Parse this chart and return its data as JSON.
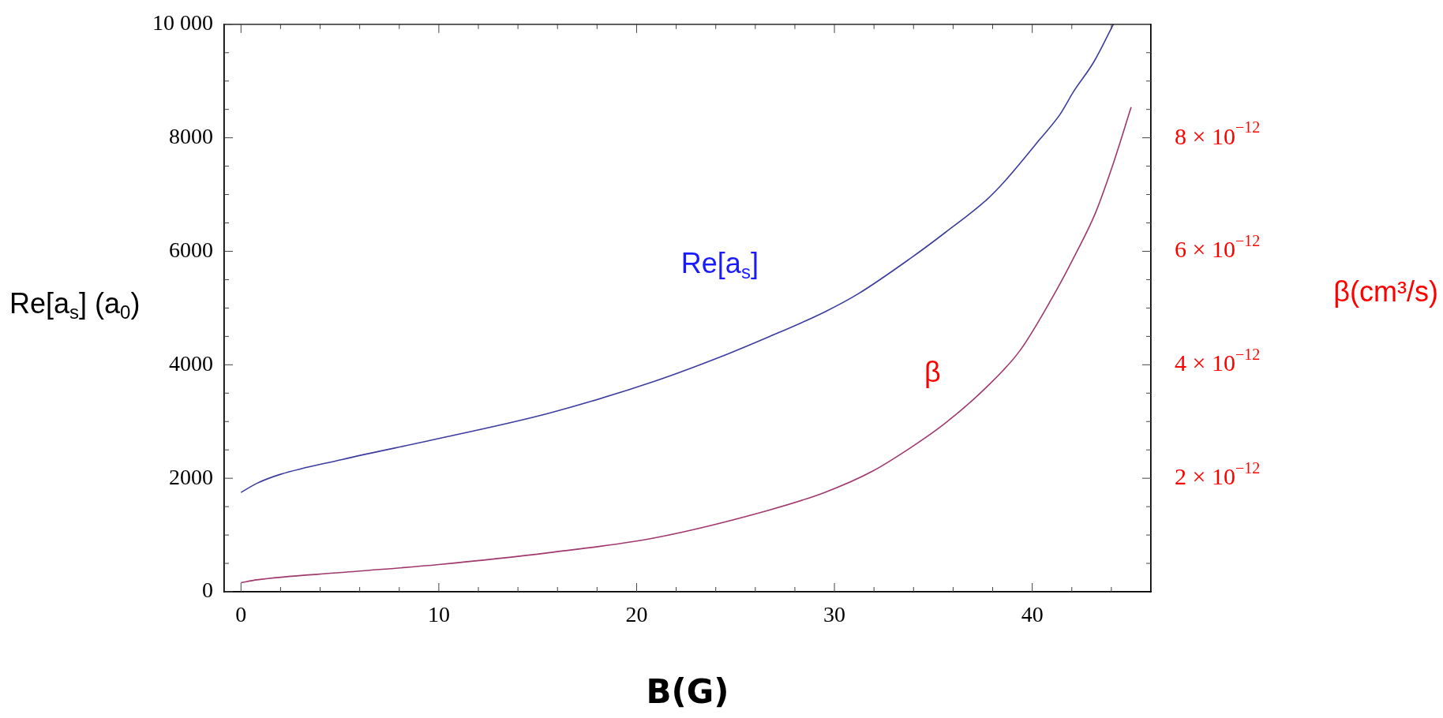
{
  "chart_data": {
    "type": "line",
    "xlabel": "B(G)",
    "ylabel": "Re[a$_{s}$] (a$_{0}$)",
    "y2label": "β(cm³/s)",
    "xlim": [
      -0.85,
      46
    ],
    "ylim": [
      0,
      10000
    ],
    "y2lim": [
      0,
      1e-11
    ],
    "xticks": [
      0,
      {
        "value": 2,
        "label": null
      },
      {
        "value": 4,
        "label": null
      },
      {
        "value": 6,
        "label": null
      },
      {
        "value": 8,
        "label": null
      },
      10,
      {
        "value": 12,
        "label": null
      },
      {
        "value": 14,
        "label": null
      },
      {
        "value": 16,
        "label": null
      },
      {
        "value": 18,
        "label": null
      },
      20,
      {
        "value": 22,
        "label": null
      },
      {
        "value": 24,
        "label": null
      },
      {
        "value": 26,
        "label": null
      },
      {
        "value": 28,
        "label": null
      },
      30,
      {
        "value": 32,
        "label": null
      },
      {
        "value": 34,
        "label": null
      },
      {
        "value": 36,
        "label": null
      },
      {
        "value": 38,
        "label": null
      },
      40,
      {
        "value": 42,
        "label": null
      },
      {
        "value": 44,
        "label": null
      }
    ],
    "yticks": [
      0,
      {
        "value": 500,
        "label": null
      },
      {
        "value": 1000,
        "label": null
      },
      {
        "value": 1500,
        "label": null
      },
      2000,
      {
        "value": 2500,
        "label": null
      },
      {
        "value": 3000,
        "label": null
      },
      {
        "value": 3500,
        "label": null
      },
      4000,
      {
        "value": 4500,
        "label": null
      },
      {
        "value": 5000,
        "label": null
      },
      {
        "value": 5500,
        "label": null
      },
      6000,
      {
        "value": 6500,
        "label": null
      },
      {
        "value": 7000,
        "label": null
      },
      {
        "value": 7500,
        "label": null
      },
      8000,
      {
        "value": 8500,
        "label": null
      },
      {
        "value": 9000,
        "label": null
      },
      {
        "value": 9500,
        "label": null
      },
      {
        "value": 10000,
        "label": "10 000"
      }
    ],
    "y2ticks": [
      {
        "value": 5e-13,
        "label": null
      },
      {
        "value": 1e-12,
        "label": null
      },
      {
        "value": 1.5e-12,
        "label": null
      },
      {
        "value": 2e-12,
        "label": "2 × 10$^{−12}$"
      },
      {
        "value": 2.5e-12,
        "label": null
      },
      {
        "value": 3e-12,
        "label": null
      },
      {
        "value": 3.5e-12,
        "label": null
      },
      {
        "value": 4e-12,
        "label": "4 × 10$^{−12}$"
      },
      {
        "value": 4.5e-12,
        "label": null
      },
      {
        "value": 5e-12,
        "label": null
      },
      {
        "value": 5.5e-12,
        "label": null
      },
      {
        "value": 6e-12,
        "label": "6 × 10$^{−12}$"
      },
      {
        "value": 6.5e-12,
        "label": null
      },
      {
        "value": 7e-12,
        "label": null
      },
      {
        "value": 7.5e-12,
        "label": null
      },
      {
        "value": 8e-12,
        "label": "8 × 10$^{−12}$"
      },
      {
        "value": 8.5e-12,
        "label": null
      },
      {
        "value": 9e-12,
        "label": null
      },
      {
        "value": 9.5e-12,
        "label": null
      }
    ],
    "series": [
      {
        "name": "Re[a$_{s}$]",
        "color": "#3c3ca0",
        "x": [
          0,
          0.8,
          2.0,
          5.1,
          10,
          15.6,
          20.9,
          24.6,
          26.6,
          29.5,
          31.2,
          33.9,
          35.6,
          37.7,
          38.6,
          40.4,
          41.4,
          42.1,
          43.1,
          44.1
        ],
        "values": [
          1750,
          1910,
          2070,
          2330,
          2700,
          3150,
          3710,
          4190,
          4480,
          4930,
          5250,
          5890,
          6330,
          6910,
          7230,
          7980,
          8410,
          8820,
          9330,
          10000
        ]
      },
      {
        "name": "β",
        "color": "#a0386e",
        "axis": "y2",
        "x": [
          0,
          0.8,
          5.1,
          10,
          15.6,
          20.9,
          26.6,
          29.5,
          31.9,
          33.9,
          35.6,
          37.7,
          39.4,
          41.2,
          42.1,
          43.2,
          44.1,
          45.0
        ],
        "values": [
          1.6e-13,
          2.1e-13,
          3.4e-13,
          4.8e-13,
          6.9e-13,
          9.5e-13,
          1.43e-12,
          1.75e-12,
          2.12e-12,
          2.55e-12,
          2.97e-12,
          3.61e-12,
          4.26e-12,
          5.3e-12,
          5.89e-12,
          6.68e-12,
          7.55e-12,
          8.54e-12
        ]
      }
    ]
  }
}
